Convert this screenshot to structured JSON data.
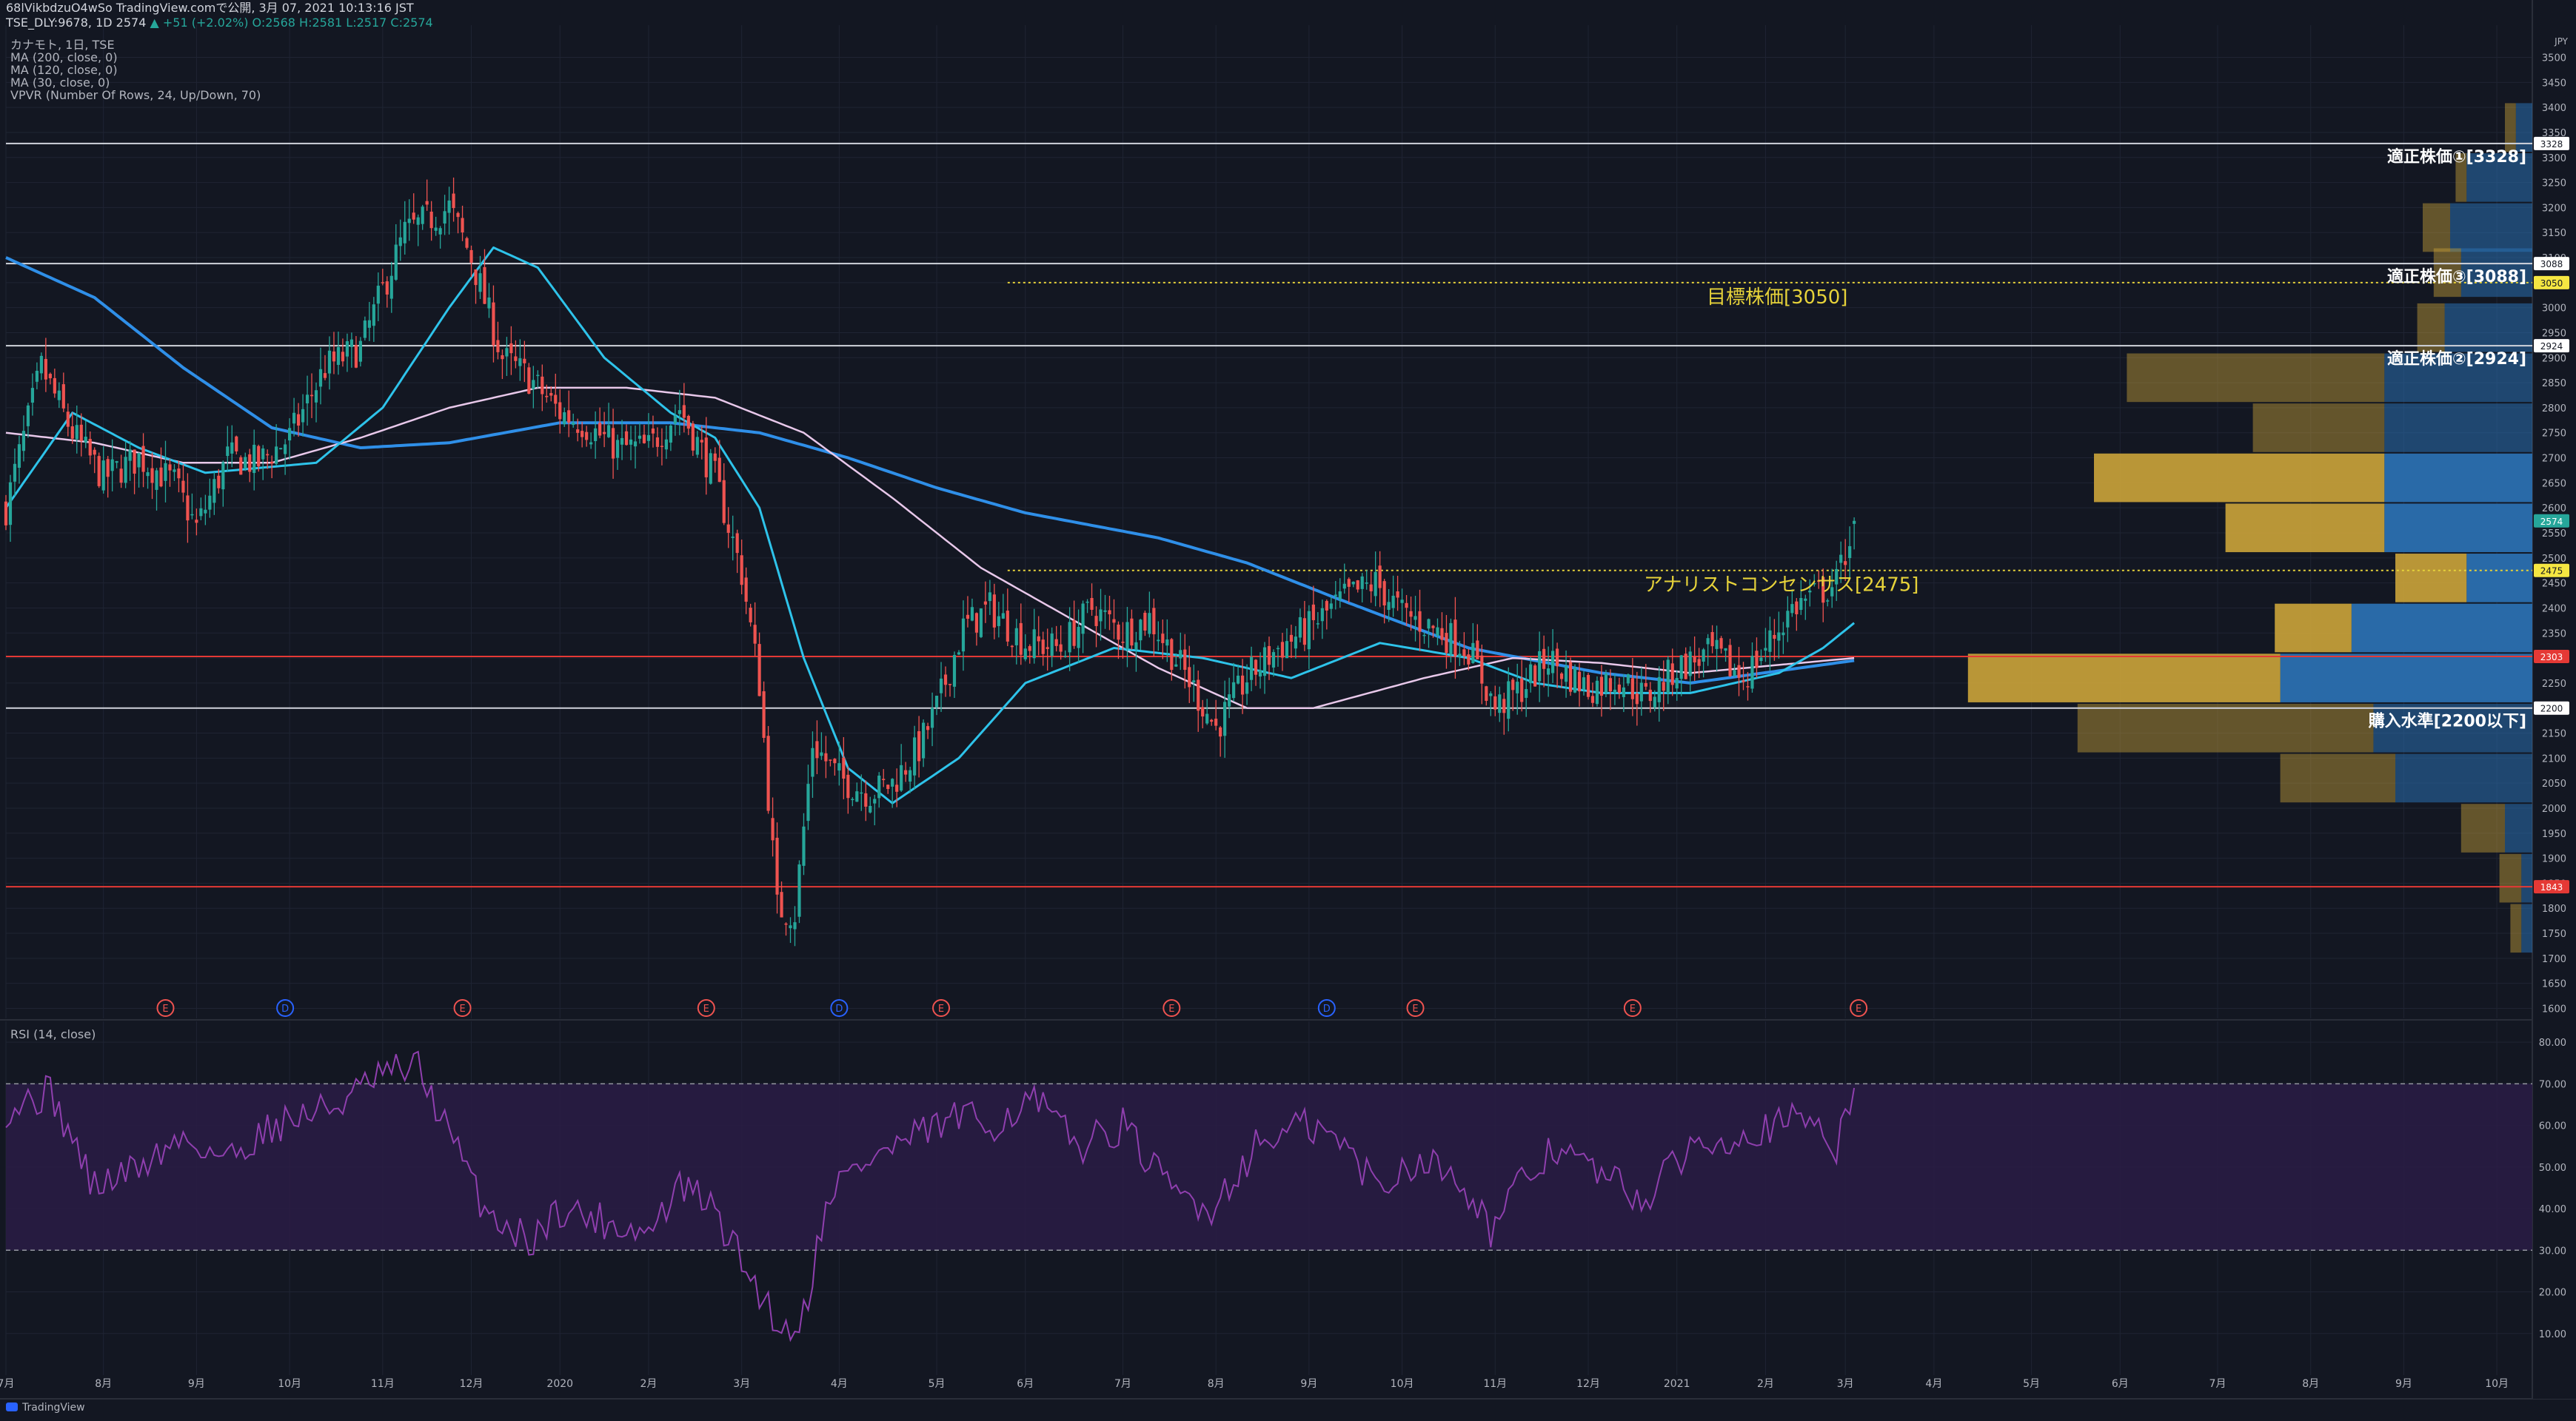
{
  "header": {
    "line1": "68lVikbdzuO4wSo TradingView.comで公開, 3月 07, 2021 10:13:16 JST",
    "line2_prefix": "TSE_DLY:9678, 1D 2574",
    "line2_change": "▲ +51 (+2.02%)",
    "line2_ohlc": "O:2568 H:2581 L:2517 C:2574"
  },
  "legend": {
    "title": "カナモト, 1日, TSE",
    "items": [
      "MA (200, close, 0)",
      "MA (120, close, 0)",
      "MA (30, close, 0)",
      "VPVR (Number Of Rows, 24, Up/Down, 70)"
    ]
  },
  "rsi_label": "RSI (14, close)",
  "footer": "TradingView",
  "colors": {
    "background": "#131722",
    "grid": "#1f2433",
    "up": "#26a69a",
    "down": "#ef5350",
    "ma200": "#2f8fe8",
    "ma120": "#e8c8ea",
    "ma30": "#2ec3ea",
    "vp_up": "#2a6fb0",
    "vp_down": "#c8a23a",
    "rsi": "#8f3fae",
    "rsi_band": "#2a1c45",
    "target": "#e6d23a",
    "support": "#e53935",
    "level": "#d1d4dc"
  },
  "chart_data": [
    {
      "type": "candlestick",
      "currency": "JPY",
      "ylim": [
        1580,
        3520
      ],
      "y_ticks": [
        1600,
        1650,
        1700,
        1750,
        1800,
        1850,
        1900,
        1950,
        2000,
        2050,
        2100,
        2150,
        2200,
        2250,
        2300,
        2350,
        2400,
        2450,
        2500,
        2550,
        2600,
        2650,
        2700,
        2750,
        2800,
        2850,
        2900,
        2950,
        3000,
        3050,
        3100,
        3150,
        3200,
        3250,
        3300,
        3350,
        3400,
        3450,
        3500
      ],
      "x_labels": [
        "7月",
        "8月",
        "9月",
        "10月",
        "11月",
        "12月",
        "2020",
        "2月",
        "3月",
        "4月",
        "5月",
        "6月",
        "7月",
        "8月",
        "9月",
        "10月",
        "11月",
        "12月",
        "2021",
        "2月",
        "3月",
        "4月",
        "5月",
        "6月",
        "7月",
        "8月",
        "9月",
        "10月"
      ],
      "x_label_index": [
        0,
        22,
        43,
        64,
        85,
        105,
        125,
        145,
        166,
        188,
        210,
        230,
        252,
        273,
        294,
        315,
        336,
        357,
        377,
        397,
        415,
        435,
        457,
        477,
        499,
        520,
        541,
        562
      ],
      "anchors": [
        [
          0,
          2600
        ],
        [
          8,
          2880
        ],
        [
          15,
          2750
        ],
        [
          22,
          2660
        ],
        [
          30,
          2700
        ],
        [
          38,
          2650
        ],
        [
          43,
          2560
        ],
        [
          50,
          2700
        ],
        [
          57,
          2690
        ],
        [
          64,
          2740
        ],
        [
          72,
          2880
        ],
        [
          80,
          2920
        ],
        [
          90,
          3150
        ],
        [
          100,
          3200
        ],
        [
          105,
          3100
        ],
        [
          112,
          2900
        ],
        [
          118,
          2860
        ],
        [
          125,
          2790
        ],
        [
          130,
          2770
        ],
        [
          138,
          2720
        ],
        [
          145,
          2720
        ],
        [
          152,
          2800
        ],
        [
          160,
          2660
        ],
        [
          166,
          2470
        ],
        [
          170,
          2250
        ],
        [
          174,
          1800
        ],
        [
          178,
          1790
        ],
        [
          182,
          2130
        ],
        [
          188,
          2060
        ],
        [
          195,
          2030
        ],
        [
          200,
          2050
        ],
        [
          206,
          2120
        ],
        [
          210,
          2200
        ],
        [
          216,
          2360
        ],
        [
          222,
          2400
        ],
        [
          230,
          2330
        ],
        [
          238,
          2320
        ],
        [
          245,
          2400
        ],
        [
          252,
          2350
        ],
        [
          258,
          2380
        ],
        [
          266,
          2270
        ],
        [
          273,
          2160
        ],
        [
          280,
          2260
        ],
        [
          287,
          2320
        ],
        [
          294,
          2360
        ],
        [
          302,
          2420
        ],
        [
          309,
          2450
        ],
        [
          315,
          2390
        ],
        [
          322,
          2360
        ],
        [
          330,
          2320
        ],
        [
          336,
          2200
        ],
        [
          342,
          2240
        ],
        [
          348,
          2300
        ],
        [
          352,
          2270
        ],
        [
          357,
          2240
        ],
        [
          364,
          2260
        ],
        [
          370,
          2220
        ],
        [
          377,
          2280
        ],
        [
          385,
          2310
        ],
        [
          392,
          2260
        ],
        [
          397,
          2320
        ],
        [
          403,
          2400
        ],
        [
          409,
          2430
        ],
        [
          413,
          2450
        ],
        [
          417,
          2574
        ]
      ],
      "last_candle": {
        "open": 2568,
        "high": 2581,
        "low": 2517,
        "close": 2574
      },
      "price_labels": [
        3328,
        3088,
        3050,
        2924,
        2574,
        2475,
        2303,
        2200,
        1843
      ],
      "horizontal_levels": [
        {
          "price": 3328,
          "label": "適正株価①[3328]",
          "color": "#d1d4dc",
          "style": "solid"
        },
        {
          "price": 3088,
          "label": "適正株価③[3088]",
          "color": "#d1d4dc",
          "style": "solid"
        },
        {
          "price": 3050,
          "label": "目標株価[3050]",
          "color": "#e6d23a",
          "style": "dotted",
          "from_index": 226
        },
        {
          "price": 2924,
          "label": "適正株価②[2924]",
          "color": "#d1d4dc",
          "style": "solid"
        },
        {
          "price": 2475,
          "label": "アナリストコンセンサス[2475]",
          "color": "#e6d23a",
          "style": "dotted",
          "from_index": 226
        },
        {
          "price": 2303,
          "label": "",
          "color": "#e53935",
          "style": "solid"
        },
        {
          "price": 2200,
          "label": "購入水準[2200以下]",
          "color": "#d1d4dc",
          "style": "solid"
        },
        {
          "price": 1843,
          "label": "",
          "color": "#e53935",
          "style": "solid"
        }
      ],
      "moving_averages": [
        {
          "name": "MA (200, close, 0)",
          "points": [
            [
              0,
              3100
            ],
            [
              20,
              3020
            ],
            [
              40,
              2880
            ],
            [
              60,
              2760
            ],
            [
              80,
              2720
            ],
            [
              100,
              2730
            ],
            [
              125,
              2770
            ],
            [
              150,
              2770
            ],
            [
              170,
              2750
            ],
            [
              190,
              2700
            ],
            [
              210,
              2640
            ],
            [
              230,
              2590
            ],
            [
              260,
              2540
            ],
            [
              280,
              2490
            ],
            [
              300,
              2420
            ],
            [
              330,
              2320
            ],
            [
              360,
              2270
            ],
            [
              380,
              2250
            ],
            [
              417,
              2295
            ]
          ]
        },
        {
          "name": "MA (120, close, 0)",
          "points": [
            [
              0,
              2750
            ],
            [
              20,
              2730
            ],
            [
              40,
              2690
            ],
            [
              60,
              2690
            ],
            [
              80,
              2740
            ],
            [
              100,
              2800
            ],
            [
              120,
              2840
            ],
            [
              140,
              2840
            ],
            [
              160,
              2820
            ],
            [
              180,
              2750
            ],
            [
              200,
              2620
            ],
            [
              220,
              2480
            ],
            [
              240,
              2380
            ],
            [
              260,
              2280
            ],
            [
              280,
              2200
            ],
            [
              295,
              2200
            ],
            [
              320,
              2260
            ],
            [
              340,
              2300
            ],
            [
              360,
              2290
            ],
            [
              380,
              2270
            ],
            [
              417,
              2300
            ]
          ]
        },
        {
          "name": "MA (30, close, 0)",
          "points": [
            [
              0,
              2600
            ],
            [
              15,
              2790
            ],
            [
              30,
              2720
            ],
            [
              45,
              2670
            ],
            [
              70,
              2690
            ],
            [
              85,
              2800
            ],
            [
              100,
              3000
            ],
            [
              110,
              3120
            ],
            [
              120,
              3080
            ],
            [
              135,
              2900
            ],
            [
              150,
              2790
            ],
            [
              160,
              2740
            ],
            [
              170,
              2600
            ],
            [
              180,
              2300
            ],
            [
              190,
              2080
            ],
            [
              200,
              2010
            ],
            [
              215,
              2100
            ],
            [
              230,
              2250
            ],
            [
              250,
              2320
            ],
            [
              270,
              2300
            ],
            [
              290,
              2260
            ],
            [
              310,
              2330
            ],
            [
              330,
              2300
            ],
            [
              345,
              2250
            ],
            [
              360,
              2230
            ],
            [
              380,
              2230
            ],
            [
              400,
              2270
            ],
            [
              410,
              2320
            ],
            [
              417,
              2370
            ]
          ]
        }
      ],
      "volume_profile": [
        {
          "price": 3360,
          "up": 0.03,
          "down": 0.02
        },
        {
          "price": 3260,
          "up": 0.12,
          "down": 0.02
        },
        {
          "price": 3160,
          "up": 0.15,
          "down": 0.05
        },
        {
          "price": 3070,
          "up": 0.13,
          "down": 0.05
        },
        {
          "price": 2960,
          "up": 0.16,
          "down": 0.05
        },
        {
          "price": 2860,
          "up": 0.27,
          "down": 0.47
        },
        {
          "price": 2760,
          "up": 0.27,
          "down": 0.24
        },
        {
          "price": 2660,
          "up": 0.27,
          "down": 0.53
        },
        {
          "price": 2560,
          "up": 0.27,
          "down": 0.29
        },
        {
          "price": 2460,
          "up": 0.12,
          "down": 0.13
        },
        {
          "price": 2360,
          "up": 0.33,
          "down": 0.14
        },
        {
          "price": 2260,
          "up": 0.46,
          "down": 0.57
        },
        {
          "price": 2160,
          "up": 0.29,
          "down": 0.54
        },
        {
          "price": 2060,
          "up": 0.25,
          "down": 0.21
        },
        {
          "price": 1960,
          "up": 0.05,
          "down": 0.08
        },
        {
          "price": 1860,
          "up": 0.02,
          "down": 0.04
        },
        {
          "price": 1760,
          "up": 0.02,
          "down": 0.02
        }
      ],
      "events": [
        {
          "index": 36,
          "type": "E"
        },
        {
          "index": 63,
          "type": "D"
        },
        {
          "index": 103,
          "type": "E"
        },
        {
          "index": 158,
          "type": "E"
        },
        {
          "index": 188,
          "type": "D"
        },
        {
          "index": 211,
          "type": "E"
        },
        {
          "index": 263,
          "type": "E"
        },
        {
          "index": 298,
          "type": "D"
        },
        {
          "index": 318,
          "type": "E"
        },
        {
          "index": 367,
          "type": "E"
        },
        {
          "index": 418,
          "type": "E"
        }
      ]
    },
    {
      "type": "line",
      "name": "RSI (14, close)",
      "ylim": [
        0,
        85
      ],
      "y_ticks": [
        10,
        20,
        30,
        40,
        50,
        60,
        70,
        80
      ],
      "band": [
        30,
        70
      ],
      "anchors": [
        [
          0,
          64
        ],
        [
          10,
          68
        ],
        [
          20,
          45
        ],
        [
          30,
          50
        ],
        [
          40,
          57
        ],
        [
          50,
          52
        ],
        [
          60,
          60
        ],
        [
          75,
          65
        ],
        [
          85,
          72
        ],
        [
          93,
          74
        ],
        [
          100,
          58
        ],
        [
          108,
          40
        ],
        [
          118,
          32
        ],
        [
          125,
          40
        ],
        [
          135,
          37
        ],
        [
          145,
          34
        ],
        [
          152,
          45
        ],
        [
          158,
          42
        ],
        [
          162,
          35
        ],
        [
          170,
          20
        ],
        [
          176,
          10
        ],
        [
          180,
          15
        ],
        [
          186,
          45
        ],
        [
          195,
          52
        ],
        [
          205,
          57
        ],
        [
          215,
          62
        ],
        [
          222,
          60
        ],
        [
          232,
          66
        ],
        [
          242,
          55
        ],
        [
          252,
          60
        ],
        [
          262,
          45
        ],
        [
          272,
          40
        ],
        [
          282,
          55
        ],
        [
          292,
          60
        ],
        [
          300,
          57
        ],
        [
          310,
          45
        ],
        [
          318,
          52
        ],
        [
          328,
          48
        ],
        [
          335,
          35
        ],
        [
          342,
          46
        ],
        [
          350,
          55
        ],
        [
          360,
          48
        ],
        [
          370,
          42
        ],
        [
          380,
          55
        ],
        [
          390,
          58
        ],
        [
          400,
          60
        ],
        [
          408,
          62
        ],
        [
          413,
          55
        ],
        [
          417,
          69
        ]
      ]
    }
  ]
}
